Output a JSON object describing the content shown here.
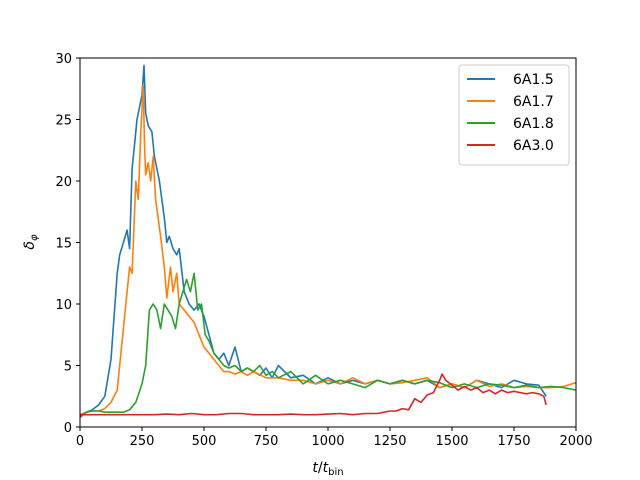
{
  "chart_data": {
    "type": "line",
    "xlabel": "t/t_bin",
    "ylabel": "δ_φ",
    "xlim": [
      0,
      2000
    ],
    "ylim": [
      0,
      30
    ],
    "xticks": [
      "0",
      "250",
      "500",
      "750",
      "1000",
      "1250",
      "1500",
      "1750",
      "2000"
    ],
    "yticks": [
      "0",
      "5",
      "10",
      "15",
      "20",
      "25",
      "30"
    ],
    "grid": false,
    "legend_position": "top-right",
    "series": [
      {
        "name": "6A1.5",
        "color": "#1f77b4",
        "x": [
          0,
          25,
          50,
          75,
          100,
          125,
          150,
          160,
          175,
          190,
          200,
          210,
          220,
          230,
          240,
          250,
          258,
          265,
          275,
          290,
          300,
          320,
          340,
          350,
          360,
          375,
          390,
          400,
          420,
          440,
          460,
          480,
          500,
          520,
          540,
          560,
          580,
          600,
          625,
          650,
          675,
          700,
          725,
          750,
          775,
          800,
          850,
          900,
          950,
          1000,
          1050,
          1100,
          1150,
          1200,
          1250,
          1300,
          1350,
          1400,
          1450,
          1500,
          1550,
          1600,
          1650,
          1700,
          1750,
          1800,
          1850,
          1880
        ],
        "y": [
          0.8,
          1.2,
          1.4,
          1.8,
          2.5,
          5.5,
          12.5,
          14,
          15,
          16,
          14.5,
          21,
          23,
          25,
          26,
          27,
          29.4,
          25.5,
          24.5,
          24,
          22,
          20,
          17,
          15,
          15.5,
          14.5,
          14,
          14.5,
          11,
          10,
          9.5,
          10,
          9,
          7.5,
          6,
          5.5,
          6,
          5,
          6.5,
          4.5,
          4.8,
          4.5,
          4.2,
          4.8,
          4,
          5,
          4,
          4.2,
          3.5,
          4,
          3.5,
          3.8,
          3.5,
          3.8,
          3.5,
          3.8,
          3.5,
          3.8,
          3.2,
          3.5,
          3.2,
          3.8,
          3.5,
          3.2,
          3.8,
          3.5,
          3.4,
          2.5
        ]
      },
      {
        "name": "6A1.7",
        "color": "#ff7f0e",
        "x": [
          0,
          25,
          50,
          75,
          100,
          125,
          150,
          175,
          190,
          200,
          210,
          225,
          235,
          245,
          255,
          260,
          265,
          275,
          285,
          295,
          305,
          315,
          325,
          340,
          350,
          365,
          375,
          390,
          400,
          420,
          440,
          460,
          480,
          500,
          520,
          540,
          560,
          580,
          600,
          625,
          650,
          675,
          700,
          750,
          800,
          850,
          900,
          950,
          1000,
          1050,
          1100,
          1150,
          1200,
          1250,
          1300,
          1350,
          1400,
          1450,
          1500,
          1550,
          1600,
          1650,
          1700,
          1750,
          1800,
          1850,
          1900,
          1950,
          2000
        ],
        "y": [
          1,
          1.2,
          1.3,
          1.3,
          1.5,
          2,
          3,
          8,
          11,
          13,
          12.5,
          20,
          18.5,
          24,
          27.8,
          23,
          20.5,
          21.5,
          20,
          22,
          18.5,
          17,
          15.5,
          13,
          10.5,
          13,
          11,
          12.5,
          10,
          9.5,
          9,
          8.5,
          7.5,
          6.5,
          6,
          5.5,
          5,
          4.5,
          4.5,
          4.3,
          4.5,
          4.2,
          4.5,
          4,
          4,
          3.8,
          3.8,
          3.5,
          3.8,
          3.5,
          4,
          3.5,
          3.8,
          3.5,
          3.6,
          3.8,
          4,
          3.2,
          3.5,
          3.2,
          3.8,
          3.3,
          3.5,
          3.2,
          3.3,
          3.2,
          3.2,
          3.3,
          3.6
        ]
      },
      {
        "name": "6A1.8",
        "color": "#2ca02c",
        "x": [
          0,
          25,
          50,
          75,
          100,
          125,
          150,
          175,
          200,
          225,
          250,
          265,
          280,
          295,
          310,
          325,
          340,
          355,
          370,
          385,
          400,
          415,
          430,
          445,
          460,
          475,
          490,
          505,
          520,
          540,
          560,
          580,
          600,
          625,
          650,
          675,
          700,
          725,
          750,
          775,
          800,
          850,
          900,
          950,
          1000,
          1050,
          1100,
          1150,
          1200,
          1250,
          1300,
          1350,
          1400,
          1450,
          1500,
          1550,
          1600,
          1650,
          1700,
          1750,
          1800,
          1850,
          1900,
          1950,
          2000
        ],
        "y": [
          0.8,
          1.2,
          1.3,
          1.3,
          1.2,
          1.2,
          1.2,
          1.2,
          1.4,
          2,
          3.5,
          5,
          9.5,
          10,
          9.5,
          8,
          10,
          9.5,
          9,
          8,
          10,
          11,
          12,
          11,
          12.5,
          9.5,
          10,
          7.5,
          7,
          6,
          5.5,
          5,
          4.8,
          5,
          4.5,
          4.8,
          4.5,
          5,
          4.2,
          4.5,
          4,
          4.5,
          3.5,
          4.2,
          3.5,
          3.8,
          3.5,
          3.2,
          3.8,
          3.5,
          3.8,
          3.5,
          3.8,
          3.6,
          3.2,
          3.5,
          3.2,
          3.5,
          3.4,
          3.2,
          3.4,
          3.2,
          3.3,
          3.2,
          3.0
        ]
      },
      {
        "name": "6A3.0",
        "color": "#d62728",
        "x": [
          0,
          50,
          100,
          150,
          200,
          250,
          300,
          350,
          400,
          450,
          500,
          550,
          600,
          650,
          700,
          750,
          800,
          850,
          900,
          950,
          1000,
          1050,
          1100,
          1150,
          1200,
          1250,
          1275,
          1300,
          1325,
          1350,
          1375,
          1400,
          1425,
          1450,
          1460,
          1475,
          1500,
          1525,
          1550,
          1575,
          1600,
          1625,
          1650,
          1675,
          1700,
          1725,
          1750,
          1775,
          1800,
          1825,
          1850,
          1870,
          1880
        ],
        "y": [
          1.0,
          1.0,
          1.0,
          1.0,
          1.0,
          1.0,
          1.0,
          1.05,
          1.0,
          1.1,
          1.0,
          1.0,
          1.1,
          1.1,
          1.0,
          1.0,
          1.0,
          1.05,
          1.0,
          1.0,
          1.05,
          1.1,
          1.0,
          1.1,
          1.1,
          1.3,
          1.3,
          1.5,
          1.4,
          2.3,
          2.0,
          2.6,
          2.8,
          3.8,
          4.3,
          3.8,
          3.4,
          3.0,
          3.3,
          3.0,
          3.2,
          2.8,
          3.0,
          2.7,
          3.0,
          2.8,
          2.9,
          2.8,
          2.7,
          2.8,
          2.7,
          2.5,
          1.8
        ]
      }
    ]
  }
}
